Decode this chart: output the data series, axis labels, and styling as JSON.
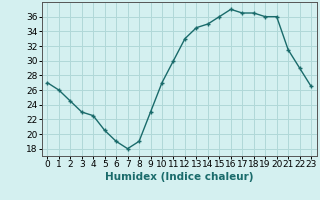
{
  "x": [
    0,
    1,
    2,
    3,
    4,
    5,
    6,
    7,
    8,
    9,
    10,
    11,
    12,
    13,
    14,
    15,
    16,
    17,
    18,
    19,
    20,
    21,
    22,
    23
  ],
  "y": [
    27,
    26,
    24.5,
    23,
    22.5,
    20.5,
    19,
    18,
    19,
    23,
    27,
    30,
    33,
    34.5,
    35,
    36,
    37,
    36.5,
    36.5,
    36,
    36,
    31.5,
    29,
    26.5
  ],
  "line_color": "#1a6b6b",
  "marker": "+",
  "marker_size": 3,
  "bg_color": "#d4f0f0",
  "grid_color": "#b0d8d8",
  "xlabel": "Humidex (Indice chaleur)",
  "xlim": [
    -0.5,
    23.5
  ],
  "ylim": [
    17,
    38
  ],
  "yticks": [
    18,
    20,
    22,
    24,
    26,
    28,
    30,
    32,
    34,
    36
  ],
  "xticks": [
    0,
    1,
    2,
    3,
    4,
    5,
    6,
    7,
    8,
    9,
    10,
    11,
    12,
    13,
    14,
    15,
    16,
    17,
    18,
    19,
    20,
    21,
    22,
    23
  ],
  "tick_label_fontsize": 6.5,
  "xlabel_fontsize": 7.5,
  "line_width": 1.0
}
